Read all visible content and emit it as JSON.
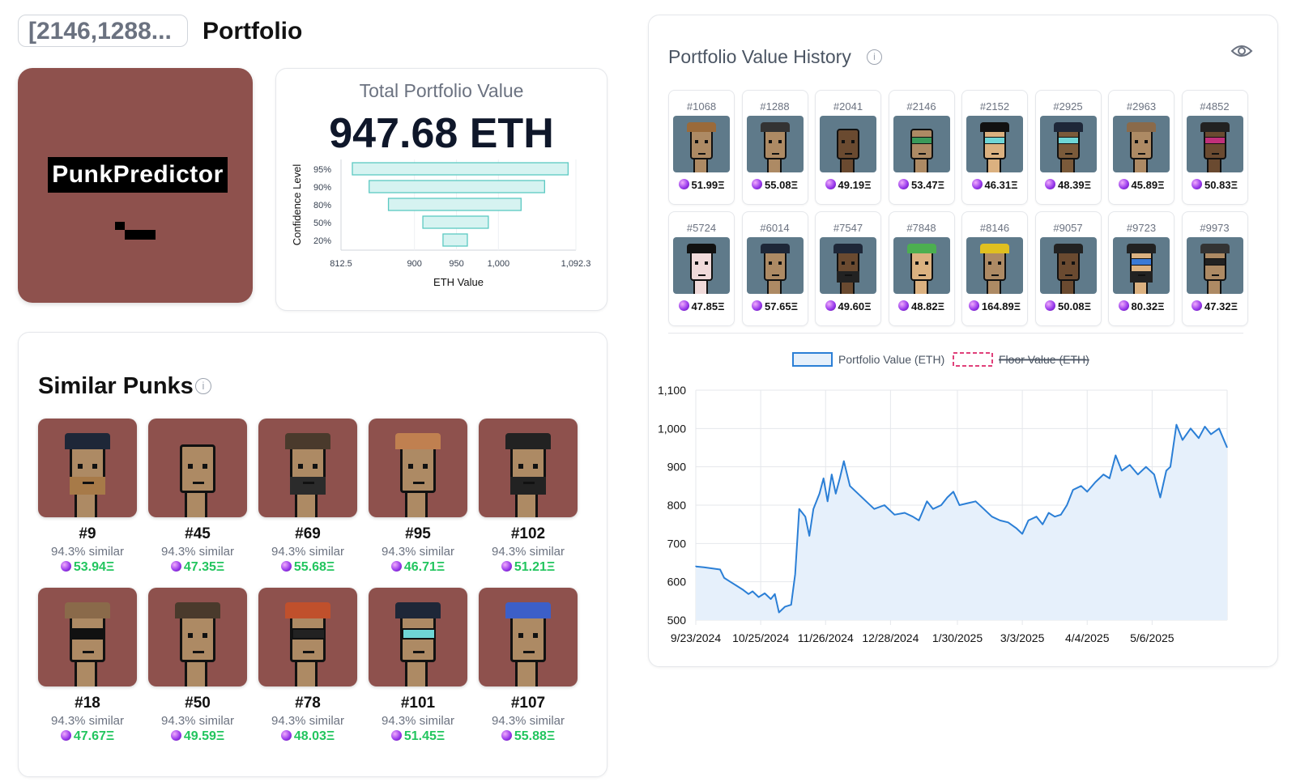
{
  "header": {
    "id_pill": "[2146,1288...",
    "title": "Portfolio"
  },
  "logo": {
    "wordmark": "PunkPredictor"
  },
  "total_value": {
    "label": "Total Portfolio Value",
    "amount": "947.68 ETH"
  },
  "confidence_chart": {
    "type": "bar",
    "ylabel": "Confidence Level",
    "xlabel": "ETH Value",
    "xlim": [
      812.5,
      1092.3
    ],
    "x_ticks": [
      "812.5",
      "900",
      "950",
      "1,000",
      "1,092.3"
    ],
    "bars": [
      {
        "label": "95%",
        "low": 826,
        "high": 1083
      },
      {
        "label": "90%",
        "low": 846,
        "high": 1055
      },
      {
        "label": "80%",
        "low": 869,
        "high": 1027
      },
      {
        "label": "50%",
        "low": 910,
        "high": 988
      },
      {
        "label": "20%",
        "low": 934,
        "high": 963
      }
    ]
  },
  "similar": {
    "title": "Similar Punks",
    "items": [
      {
        "id": "#9",
        "similarity": "94.3% similar",
        "price": "53.94Ξ"
      },
      {
        "id": "#45",
        "similarity": "94.3% similar",
        "price": "47.35Ξ"
      },
      {
        "id": "#69",
        "similarity": "94.3% similar",
        "price": "55.68Ξ"
      },
      {
        "id": "#95",
        "similarity": "94.3% similar",
        "price": "46.71Ξ"
      },
      {
        "id": "#102",
        "similarity": "94.3% similar",
        "price": "51.21Ξ"
      },
      {
        "id": "#18",
        "similarity": "94.3% similar",
        "price": "47.67Ξ"
      },
      {
        "id": "#50",
        "similarity": "94.3% similar",
        "price": "49.59Ξ"
      },
      {
        "id": "#78",
        "similarity": "94.3% similar",
        "price": "48.03Ξ"
      },
      {
        "id": "#101",
        "similarity": "94.3% similar",
        "price": "51.45Ξ"
      },
      {
        "id": "#107",
        "similarity": "94.3% similar",
        "price": "55.88Ξ"
      }
    ]
  },
  "history": {
    "title": "Portfolio Value History",
    "owned": [
      {
        "id": "#1068",
        "price": "51.99Ξ"
      },
      {
        "id": "#1288",
        "price": "55.08Ξ"
      },
      {
        "id": "#2041",
        "price": "49.19Ξ"
      },
      {
        "id": "#2146",
        "price": "53.47Ξ"
      },
      {
        "id": "#2152",
        "price": "46.31Ξ"
      },
      {
        "id": "#2925",
        "price": "48.39Ξ"
      },
      {
        "id": "#2963",
        "price": "45.89Ξ"
      },
      {
        "id": "#4852",
        "price": "50.83Ξ"
      },
      {
        "id": "#5724",
        "price": "47.85Ξ"
      },
      {
        "id": "#6014",
        "price": "57.65Ξ"
      },
      {
        "id": "#7547",
        "price": "49.60Ξ"
      },
      {
        "id": "#7848",
        "price": "48.82Ξ"
      },
      {
        "id": "#8146",
        "price": "164.89Ξ"
      },
      {
        "id": "#9057",
        "price": "50.08Ξ"
      },
      {
        "id": "#9723",
        "price": "80.32Ξ"
      },
      {
        "id": "#9973",
        "price": "47.32Ξ"
      }
    ]
  },
  "chart_data": {
    "type": "area",
    "legend": [
      {
        "name": "Portfolio Value (ETH)",
        "color": "#2b7fd6",
        "hidden": false
      },
      {
        "name": "Floor Value (ETH)",
        "color": "#e0407a",
        "hidden": true
      }
    ],
    "legend_placement": "top",
    "ylim": [
      500,
      1100
    ],
    "y_ticks": [
      "500",
      "600",
      "700",
      "800",
      "900",
      "1,000",
      "1,100"
    ],
    "x_ticks": [
      "9/23/2024",
      "10/25/2024",
      "11/26/2024",
      "12/28/2024",
      "1/30/2025",
      "3/3/2025",
      "4/4/2025",
      "5/6/2025"
    ],
    "grid": true,
    "series": [
      {
        "name": "Portfolio Value (ETH)",
        "points": [
          [
            "2024-09-23",
            640
          ],
          [
            "2024-09-27",
            638
          ],
          [
            "2024-10-01",
            635
          ],
          [
            "2024-10-05",
            632
          ],
          [
            "2024-10-07",
            610
          ],
          [
            "2024-10-10",
            600
          ],
          [
            "2024-10-13",
            590
          ],
          [
            "2024-10-16",
            580
          ],
          [
            "2024-10-19",
            568
          ],
          [
            "2024-10-21",
            575
          ],
          [
            "2024-10-24",
            560
          ],
          [
            "2024-10-27",
            570
          ],
          [
            "2024-10-30",
            555
          ],
          [
            "2024-11-01",
            568
          ],
          [
            "2024-11-03",
            520
          ],
          [
            "2024-11-06",
            535
          ],
          [
            "2024-11-09",
            540
          ],
          [
            "2024-11-11",
            620
          ],
          [
            "2024-11-13",
            790
          ],
          [
            "2024-11-16",
            770
          ],
          [
            "2024-11-18",
            720
          ],
          [
            "2024-11-20",
            790
          ],
          [
            "2024-11-23",
            830
          ],
          [
            "2024-11-25",
            870
          ],
          [
            "2024-11-27",
            810
          ],
          [
            "2024-11-29",
            880
          ],
          [
            "2024-12-01",
            830
          ],
          [
            "2024-12-03",
            870
          ],
          [
            "2024-12-05",
            915
          ],
          [
            "2024-12-08",
            850
          ],
          [
            "2024-12-12",
            830
          ],
          [
            "2024-12-16",
            810
          ],
          [
            "2024-12-20",
            790
          ],
          [
            "2024-12-25",
            800
          ],
          [
            "2024-12-30",
            775
          ],
          [
            "2025-01-04",
            780
          ],
          [
            "2025-01-08",
            770
          ],
          [
            "2025-01-11",
            760
          ],
          [
            "2025-01-15",
            810
          ],
          [
            "2025-01-18",
            790
          ],
          [
            "2025-01-22",
            800
          ],
          [
            "2025-01-25",
            820
          ],
          [
            "2025-01-28",
            835
          ],
          [
            "2025-01-31",
            800
          ],
          [
            "2025-02-04",
            805
          ],
          [
            "2025-02-08",
            810
          ],
          [
            "2025-02-12",
            790
          ],
          [
            "2025-02-16",
            770
          ],
          [
            "2025-02-20",
            760
          ],
          [
            "2025-02-24",
            755
          ],
          [
            "2025-02-28",
            740
          ],
          [
            "2025-03-03",
            725
          ],
          [
            "2025-03-06",
            760
          ],
          [
            "2025-03-10",
            770
          ],
          [
            "2025-03-13",
            750
          ],
          [
            "2025-03-16",
            780
          ],
          [
            "2025-03-19",
            770
          ],
          [
            "2025-03-22",
            775
          ],
          [
            "2025-03-25",
            800
          ],
          [
            "2025-03-28",
            840
          ],
          [
            "2025-04-01",
            850
          ],
          [
            "2025-04-04",
            835
          ],
          [
            "2025-04-08",
            860
          ],
          [
            "2025-04-12",
            880
          ],
          [
            "2025-04-15",
            870
          ],
          [
            "2025-04-18",
            930
          ],
          [
            "2025-04-21",
            890
          ],
          [
            "2025-04-25",
            905
          ],
          [
            "2025-04-29",
            880
          ],
          [
            "2025-05-03",
            900
          ],
          [
            "2025-05-07",
            880
          ],
          [
            "2025-05-10",
            820
          ],
          [
            "2025-05-13",
            890
          ],
          [
            "2025-05-15",
            900
          ],
          [
            "2025-05-18",
            1010
          ],
          [
            "2025-05-21",
            970
          ],
          [
            "2025-05-25",
            1000
          ],
          [
            "2025-05-29",
            975
          ],
          [
            "2025-06-01",
            1005
          ],
          [
            "2025-06-04",
            985
          ],
          [
            "2025-06-08",
            1000
          ],
          [
            "2025-06-12",
            950
          ]
        ]
      }
    ]
  }
}
